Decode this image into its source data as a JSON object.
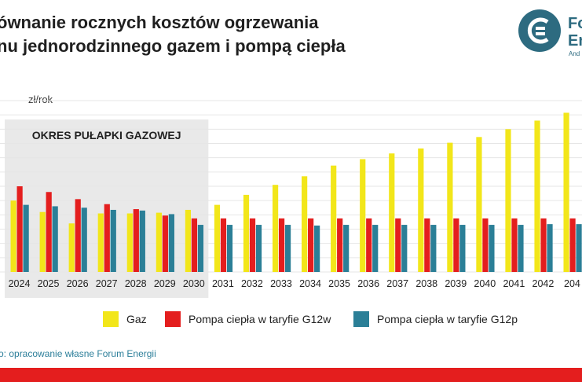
{
  "title": {
    "line1": "ównanie rocznych kosztów ogrzewania",
    "line2": "nu jednorodzinnego gazem i pompą ciepła"
  },
  "logo": {
    "line1": "Fo",
    "line2": "En",
    "sub": "And"
  },
  "source": "o: opracowanie własne Forum Energii",
  "colors": {
    "gaz": "#f2e61a",
    "g12w": "#e41e1e",
    "g12p": "#2b7f97",
    "shade": "#e9e9e9",
    "grid": "#e6e6e6",
    "brand": "#2d6b80",
    "footer": "#e41e1e"
  },
  "chart_data": {
    "type": "bar",
    "ylabel": "zł/rok",
    "grid": true,
    "annotation": {
      "text": "OKRES PUŁAPKI GAZOWEJ",
      "from": "2024",
      "to": "2030"
    },
    "categories": [
      "2024",
      "2025",
      "2026",
      "2027",
      "2028",
      "2029",
      "2030",
      "2031",
      "2032",
      "2033",
      "2034",
      "2035",
      "2036",
      "2037",
      "2038",
      "2039",
      "2040",
      "2041",
      "2042",
      "204"
    ],
    "series": [
      {
        "name": "Gaz",
        "color": "#f2e61a",
        "values": [
          5000,
          4200,
          3400,
          4100,
          4100,
          4150,
          4350,
          4700,
          5400,
          6100,
          6700,
          7450,
          7900,
          8300,
          8650,
          9050,
          9450,
          10000,
          10600,
          11150
        ]
      },
      {
        "name": "Pompa ciepła w taryfie G12w",
        "color": "#e41e1e",
        "values": [
          6000,
          5600,
          5100,
          4750,
          4400,
          3950,
          3750,
          3750,
          3750,
          3750,
          3750,
          3750,
          3750,
          3750,
          3750,
          3750,
          3750,
          3750,
          3750,
          3750
        ]
      },
      {
        "name": "Pompa ciepła w taryfie G12p",
        "color": "#2b7f97",
        "values": [
          4700,
          4600,
          4500,
          4350,
          4300,
          4050,
          3300,
          3300,
          3300,
          3300,
          3250,
          3300,
          3300,
          3300,
          3300,
          3300,
          3300,
          3300,
          3350,
          3350
        ]
      }
    ],
    "ylim": [
      0,
      12000
    ]
  }
}
